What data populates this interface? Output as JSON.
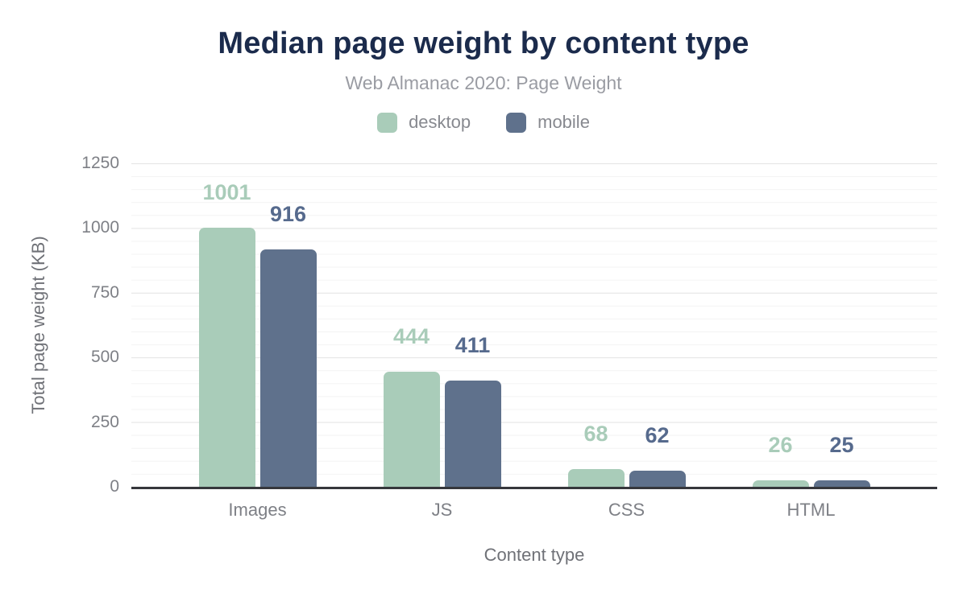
{
  "title": "Median page weight by content type",
  "subtitle": "Web Almanac 2020: Page Weight",
  "chart_data": {
    "type": "bar",
    "title": "Median page weight by content type",
    "subtitle": "Web Almanac 2020: Page Weight",
    "categories": [
      "Images",
      "JS",
      "CSS",
      "HTML"
    ],
    "series": [
      {
        "name": "desktop",
        "color": "#a9ccb9",
        "label_color": "#a9ccb9",
        "values": [
          1001,
          444,
          68,
          26
        ]
      },
      {
        "name": "mobile",
        "color": "#5f718c",
        "label_color": "#566a8d",
        "values": [
          916,
          411,
          62,
          25
        ]
      }
    ],
    "xlabel": "Content type",
    "ylabel": "Total page weight (KB)",
    "ylim": [
      0,
      1250
    ],
    "yticks": [
      0,
      250,
      500,
      750,
      1000,
      1250
    ],
    "grid": "horizontal major every 250, minor every 50",
    "legend_position": "top",
    "bar_labels_shown": true
  },
  "colors": {
    "title_text": "#1b2b4c",
    "subtitle_text": "#9a9ca3",
    "legend_text": "#87898f",
    "tick_text": "#7e8086",
    "axis_title_text": "#6f7177",
    "grid_major": "#e4e4e4",
    "grid_minor": "#f3f3f3",
    "axis_line": "#36373c",
    "background": "#ffffff",
    "desktop": "#a9ccb9",
    "mobile": "#5f718c"
  }
}
